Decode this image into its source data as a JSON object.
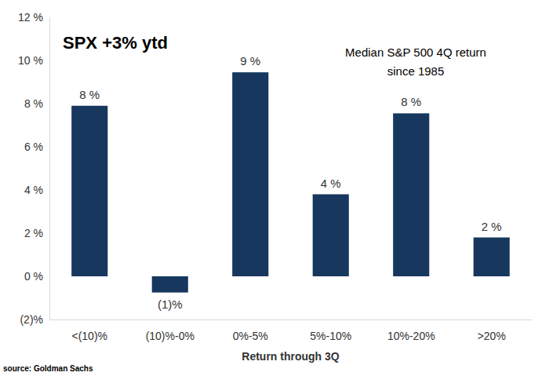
{
  "chart_data": {
    "type": "bar",
    "title": "Median S&P 500 4Q return since 1985",
    "annotations": [
      "SPX +3% ytd"
    ],
    "x_label": "Return through 3Q",
    "source": "source: Goldman Sachs",
    "categories": [
      "<(10)%",
      "(10)%-0%",
      "0%-5%",
      "5%-10%",
      "10%-20%",
      ">20%"
    ],
    "values": [
      7.9,
      -0.75,
      9.45,
      3.8,
      7.55,
      1.8
    ],
    "value_labels": [
      "8 %",
      "(1)%",
      "9 %",
      "4 %",
      "8 %",
      "2 %"
    ],
    "data_labels": true,
    "color": "#17375e",
    "ylim": [
      -2,
      12
    ],
    "yticks": [
      {
        "value": -2,
        "label": "(2)%"
      },
      {
        "value": 0,
        "label": "0 %"
      },
      {
        "value": 2,
        "label": "2 %"
      },
      {
        "value": 4,
        "label": "4 %"
      },
      {
        "value": 6,
        "label": "6 %"
      },
      {
        "value": 8,
        "label": "8 %"
      },
      {
        "value": 10,
        "label": "10 %"
      },
      {
        "value": 12,
        "label": "12 %"
      }
    ],
    "grid": false
  }
}
